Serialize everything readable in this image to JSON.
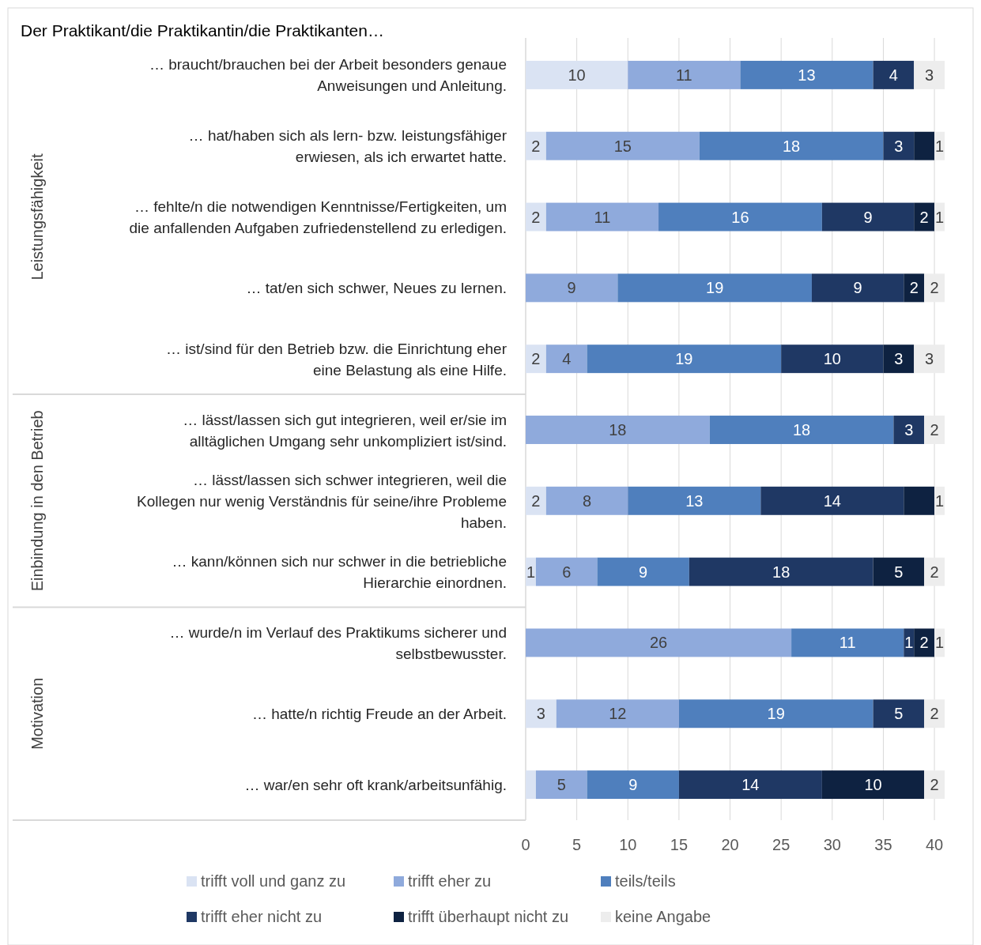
{
  "chart_data": {
    "type": "bar",
    "orientation": "horizontal",
    "stacked": true,
    "title": "Der Praktikant/die Praktikantin/die Praktikanten…",
    "categories": [
      "… braucht/brauchen bei der Arbeit besonders genaue Anweisungen und Anleitung.",
      "… hat/haben sich als lern- bzw. leistungsfähiger erwiesen, als ich erwartet hatte.",
      "… fehlte/n die notwendigen Kenntnisse/Fertigkeiten, um die anfallenden Aufgaben zufriedenstellend zu erledigen.",
      "… tat/en sich schwer, Neues zu lernen.",
      "… ist/sind für den Betrieb bzw. die Einrichtung eher eine Belastung als eine Hilfe.",
      "… lässt/lassen sich gut integrieren, weil er/sie im alltäglichen Umgang sehr unkompliziert ist/sind.",
      "… lässt/lassen sich schwer integrieren, weil die Kollegen nur wenig Verständnis für seine/ihre Probleme haben.",
      "… kann/können sich nur schwer in die betriebliche Hierarchie einordnen.",
      "… wurde/n im Verlauf des Praktikums sicherer und selbstbewusster.",
      "… hatte/n richtig Freude an der Arbeit.",
      "… war/en sehr oft krank/arbeitsunfähig."
    ],
    "series": [
      {
        "name": "trifft voll und ganz zu",
        "color": "#dae3f3",
        "values": [
          10,
          2,
          2,
          0,
          2,
          0,
          2,
          1,
          0,
          3,
          1
        ],
        "value_labels": [
          "10",
          "2",
          "2",
          null,
          "2",
          null,
          "2",
          "1",
          null,
          "3",
          null
        ]
      },
      {
        "name": "trifft eher zu",
        "color": "#8faadc",
        "values": [
          11,
          15,
          11,
          9,
          4,
          18,
          8,
          6,
          26,
          12,
          5
        ],
        "value_labels": [
          "11",
          "15",
          "11",
          "9",
          "4",
          "18",
          "8",
          "6",
          "26",
          "12",
          "5"
        ]
      },
      {
        "name": "teils/teils",
        "color": "#4f7fbd",
        "values": [
          13,
          18,
          16,
          19,
          19,
          18,
          13,
          9,
          11,
          19,
          9
        ],
        "value_labels": [
          "13",
          "18",
          "16",
          "19",
          "19",
          "18",
          "13",
          "9",
          "11",
          "19",
          "9"
        ]
      },
      {
        "name": "trifft eher nicht zu",
        "color": "#1f3864",
        "values": [
          4,
          3,
          9,
          9,
          10,
          3,
          14,
          18,
          1,
          5,
          14
        ],
        "value_labels": [
          "4",
          "3",
          "9",
          "9",
          "10",
          "3",
          "14",
          "18",
          "1",
          "5",
          "14"
        ]
      },
      {
        "name": "trifft überhaupt nicht zu",
        "color": "#0e2241",
        "values": [
          0,
          2,
          2,
          2,
          3,
          0,
          3,
          5,
          2,
          0,
          10
        ],
        "value_labels": [
          null,
          null,
          "2",
          "2",
          "3",
          null,
          null,
          "5",
          "2",
          null,
          "10"
        ]
      },
      {
        "name": "keine Angabe",
        "color": "#ededed",
        "values": [
          3,
          1,
          1,
          2,
          3,
          2,
          1,
          2,
          1,
          2,
          2
        ],
        "value_labels": [
          "3",
          "1",
          "1",
          "2",
          "3",
          "2",
          "1",
          "2",
          "1",
          "2",
          "2"
        ]
      }
    ],
    "xlim": [
      0,
      41
    ],
    "xticks": [
      0,
      5,
      10,
      15,
      20,
      25,
      30,
      35,
      40
    ],
    "grid": "x",
    "legend": "bottom",
    "annotations": [
      "Leistungsfähigkeit",
      "Einbindung in den Betrieb",
      "Motivation"
    ]
  }
}
